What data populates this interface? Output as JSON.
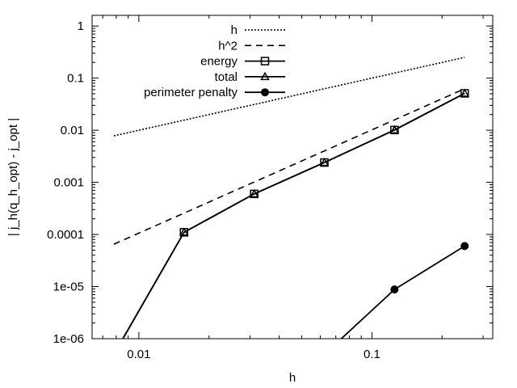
{
  "chart_data": {
    "type": "line",
    "xlabel": "h",
    "ylabel": "| j_h(q_h_opt) - j_opt |",
    "xscale": "log",
    "yscale": "log",
    "xlim": [
      0.0063,
      0.33
    ],
    "ylim": [
      1e-06,
      1.6
    ],
    "grid": false,
    "legend_position": "top-left",
    "x_ticks": [
      {
        "value": 0.01,
        "label": "0.01"
      },
      {
        "value": 0.1,
        "label": "0.1"
      }
    ],
    "y_ticks": [
      {
        "value": 1,
        "label": "1"
      },
      {
        "value": 0.1,
        "label": "0.1"
      },
      {
        "value": 0.01,
        "label": "0.01"
      },
      {
        "value": 0.001,
        "label": "0.001"
      },
      {
        "value": 0.0001,
        "label": "0.0001"
      },
      {
        "value": 1e-05,
        "label": "1e-05"
      },
      {
        "value": 1e-06,
        "label": "1e-06"
      }
    ],
    "series": [
      {
        "name": "h",
        "style": "dotted",
        "marker": "none",
        "x": [
          0.0078125,
          0.25
        ],
        "y": [
          0.0078,
          0.25
        ]
      },
      {
        "name": "h^2",
        "style": "dashed",
        "marker": "none",
        "x": [
          0.0078125,
          0.25
        ],
        "y": [
          6.5e-05,
          0.0625
        ]
      },
      {
        "name": "energy",
        "style": "solid",
        "marker": "square",
        "x": [
          0.0078125,
          0.015625,
          0.03125,
          0.0625,
          0.125,
          0.25
        ],
        "y": [
          5e-07,
          0.00011,
          0.0006,
          0.0024,
          0.0101,
          0.051
        ]
      },
      {
        "name": "total",
        "style": "solid",
        "marker": "triangle",
        "x": [
          0.0078125,
          0.015625,
          0.03125,
          0.0625,
          0.125,
          0.25
        ],
        "y": [
          5e-07,
          0.00011,
          0.0006,
          0.0024,
          0.0101,
          0.051
        ]
      },
      {
        "name": "perimeter penalty",
        "style": "solid",
        "marker": "circle",
        "x": [
          0.0625,
          0.125,
          0.25
        ],
        "y": [
          5e-07,
          8.8e-06,
          6e-05
        ]
      }
    ]
  }
}
